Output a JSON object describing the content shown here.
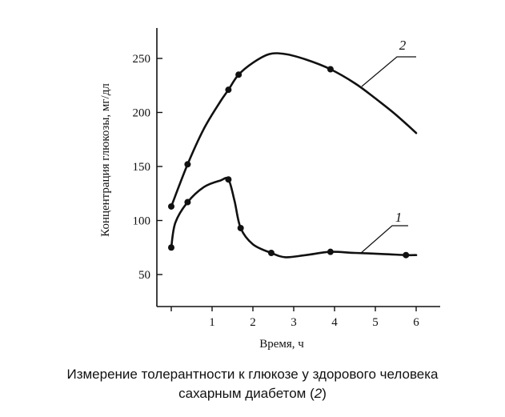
{
  "caption": {
    "line1": "Измерение толерантности к глюкозе у здорового человека",
    "line2_prefix": "сахарным диабетом (",
    "line2_num": "2",
    "line2_suffix": ")"
  },
  "chart_data": {
    "type": "line",
    "xlabel": "Время, ч",
    "ylabel": "Концентрация глюкозы, мг/дл",
    "xlim": [
      0,
      6
    ],
    "ylim": [
      40,
      265
    ],
    "xticks": [
      "1",
      "2",
      "3",
      "4",
      "5",
      "6"
    ],
    "xtick_values": [
      1,
      2,
      3,
      4,
      5,
      6
    ],
    "yticks": [
      "50",
      "100",
      "150",
      "200",
      "250"
    ],
    "ytick_values": [
      50,
      100,
      150,
      200,
      250
    ],
    "grid": false,
    "series": [
      {
        "name": "1",
        "color": "#111111",
        "points": [
          [
            0,
            75
          ],
          [
            0.4,
            117
          ],
          [
            1.4,
            138
          ],
          [
            1.7,
            93
          ],
          [
            2.45,
            70
          ],
          [
            3.9,
            71
          ],
          [
            5.75,
            68
          ]
        ],
        "curve": [
          [
            0,
            75
          ],
          [
            0.1,
            98
          ],
          [
            0.4,
            117
          ],
          [
            0.8,
            131
          ],
          [
            1.2,
            137
          ],
          [
            1.4,
            138
          ],
          [
            1.55,
            118
          ],
          [
            1.7,
            93
          ],
          [
            2.0,
            78
          ],
          [
            2.45,
            70
          ],
          [
            2.8,
            66
          ],
          [
            3.3,
            68
          ],
          [
            3.9,
            71
          ],
          [
            4.5,
            70
          ],
          [
            5.2,
            69
          ],
          [
            5.75,
            68
          ],
          [
            6.0,
            68
          ]
        ]
      },
      {
        "name": "2",
        "color": "#111111",
        "points": [
          [
            0,
            113
          ],
          [
            0.4,
            152
          ],
          [
            1.4,
            221
          ],
          [
            1.65,
            235
          ],
          [
            3.9,
            240
          ]
        ],
        "curve": [
          [
            0,
            113
          ],
          [
            0.4,
            152
          ],
          [
            0.8,
            185
          ],
          [
            1.2,
            210
          ],
          [
            1.4,
            221
          ],
          [
            1.65,
            235
          ],
          [
            2.0,
            246
          ],
          [
            2.4,
            254
          ],
          [
            2.8,
            254
          ],
          [
            3.3,
            249
          ],
          [
            3.9,
            240
          ],
          [
            4.5,
            227
          ],
          [
            5.0,
            213
          ],
          [
            5.5,
            198
          ],
          [
            6.0,
            181
          ]
        ]
      }
    ]
  }
}
